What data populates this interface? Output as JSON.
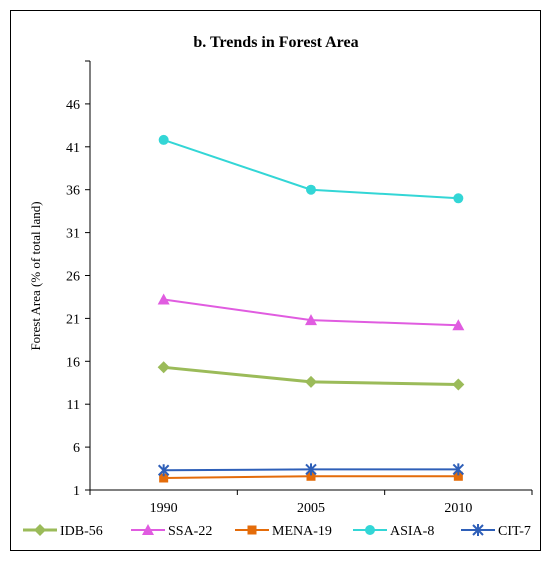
{
  "chart_data": {
    "type": "line",
    "title": "b. Trends in Forest Area",
    "xlabel": "",
    "ylabel": "Forest Area (% of total land)",
    "categories": [
      "1990",
      "2005",
      "2010"
    ],
    "ylim": [
      1,
      51
    ],
    "yticks": [
      1,
      6,
      11,
      16,
      21,
      26,
      31,
      36,
      41,
      46
    ],
    "grid": false,
    "legend_position": "bottom",
    "series": [
      {
        "name": "IDB-56",
        "values": [
          15.3,
          13.6,
          13.3
        ],
        "color": "#9BBB59",
        "marker": "diamond"
      },
      {
        "name": "SSA-22",
        "values": [
          23.2,
          20.8,
          20.2
        ],
        "color": "#E05CE0",
        "marker": "triangle"
      },
      {
        "name": "MENA-19",
        "values": [
          2.4,
          2.6,
          2.6
        ],
        "color": "#E46C0A",
        "marker": "square"
      },
      {
        "name": "ASIA-8",
        "values": [
          41.8,
          36.0,
          35.0
        ],
        "color": "#33D6D6",
        "marker": "circle"
      },
      {
        "name": "CIT-7",
        "values": [
          3.3,
          3.4,
          3.4
        ],
        "color": "#2E5FB8",
        "marker": "star"
      }
    ]
  }
}
